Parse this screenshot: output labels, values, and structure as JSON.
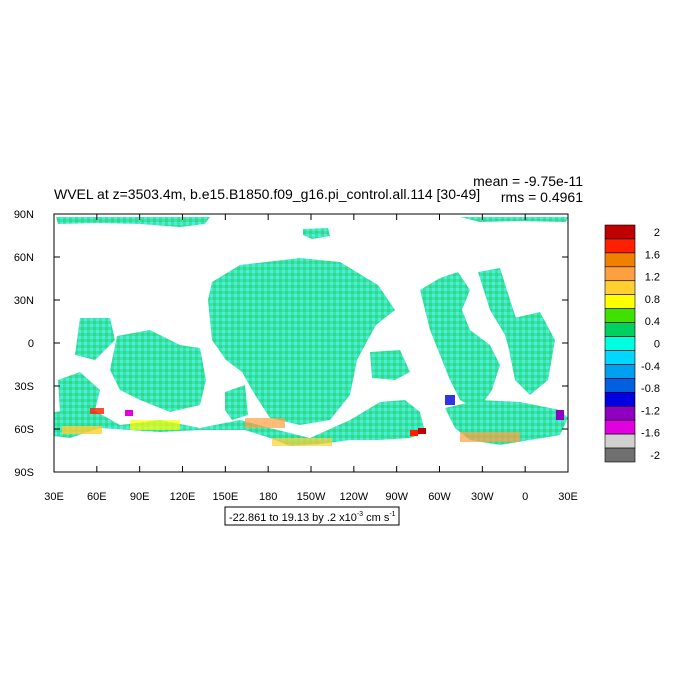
{
  "chart_data": {
    "type": "heatmap",
    "title": "WVEL at z=3503.4m, b.e15.B1850.f09_g16.pi_control.all.114 [30-49]",
    "stats": {
      "mean": "mean = -9.75e-11",
      "rms": "rms = 0.4961"
    },
    "x_tick_labels": [
      "30E",
      "60E",
      "90E",
      "120E",
      "150E",
      "180",
      "150W",
      "120W",
      "90W",
      "60W",
      "30W",
      "0",
      "30E"
    ],
    "y_tick_labels": [
      "90N",
      "60N",
      "30N",
      "0",
      "30S",
      "60S",
      "90S"
    ],
    "xlim": [
      30,
      390
    ],
    "ylim": [
      -90,
      90
    ],
    "colorbar": {
      "levels": [
        "2",
        "1.6",
        "1.2",
        "0.8",
        "0.4",
        "0",
        "-0.4",
        "-0.8",
        "-1.2",
        "-1.6",
        "-2"
      ],
      "colors": [
        "#c00000",
        "#ff2000",
        "#f08000",
        "#ffa040",
        "#ffd030",
        "#ffff00",
        "#40e000",
        "#00d060",
        "#00ffe0",
        "#00d8ff",
        "#00a0f0",
        "#0060e0",
        "#0000e0",
        "#9000c0",
        "#e000e0",
        "#d0d0d0",
        "#707070"
      ]
    },
    "range_label": {
      "main": "-22.861 to 19.13 by .2 x10",
      "exp1": "-3",
      "unit": " cm s",
      "exp2": "-1"
    },
    "field_summary": "ocean-only field, values mostly between -0.4 and 0.4, stronger extremes near 60S"
  },
  "style": {
    "ocean_base": "#3de2a6",
    "ocean_alt": "#46f0e0",
    "land": "#ffffff",
    "frame": "#000000"
  }
}
